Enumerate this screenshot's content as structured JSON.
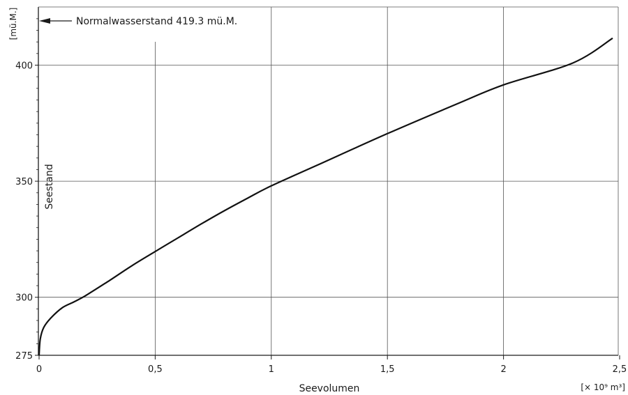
{
  "chart_data": {
    "type": "line",
    "title": "",
    "xlabel": "Seevolumen",
    "xunit": "[× 10⁹ m³]",
    "ylabel": "Seestand",
    "yunit": "[mü.M.]",
    "xlim": [
      0,
      2.5
    ],
    "ylim": [
      275,
      425
    ],
    "xticks": [
      {
        "value": 0,
        "label": "0"
      },
      {
        "value": 0.5,
        "label": "0,5"
      },
      {
        "value": 1,
        "label": "1"
      },
      {
        "value": 1.5,
        "label": "1,5"
      },
      {
        "value": 2,
        "label": "2"
      },
      {
        "value": 2.5,
        "label": "2,5"
      }
    ],
    "yticks": [
      {
        "value": 275,
        "label": "275"
      },
      {
        "value": 300,
        "label": "300"
      },
      {
        "value": 350,
        "label": "350"
      },
      {
        "value": 400,
        "label": "400"
      }
    ],
    "grid": true,
    "series": [
      {
        "name": "",
        "x": [
          0,
          0.005,
          0.02,
          0.05,
          0.1,
          0.15,
          0.2,
          0.3,
          0.4,
          0.5,
          0.6,
          0.7,
          0.8,
          0.9,
          1.0,
          1.2,
          1.5,
          1.8,
          2.0,
          2.3,
          2.47
        ],
        "y": [
          275,
          282,
          287,
          291,
          295.5,
          298,
          300.7,
          307,
          313.6,
          319.7,
          325.7,
          331.7,
          337.4,
          342.8,
          348,
          357,
          370.5,
          383.3,
          391.5,
          401,
          411.6
        ]
      }
    ],
    "annotations": [
      {
        "text": "Normalwasserstand  419.3 mü.M.",
        "y": 419.3
      }
    ]
  }
}
